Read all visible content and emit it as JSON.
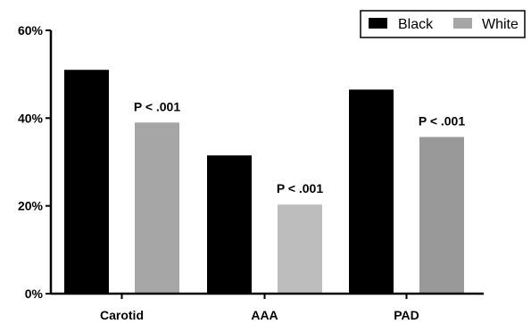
{
  "chart_data": {
    "type": "bar",
    "title": "",
    "xlabel": "",
    "ylabel": "",
    "categories": [
      "Carotid",
      "AAA",
      "PAD"
    ],
    "series": [
      {
        "name": "Black",
        "color": "#000000",
        "values": [
          51,
          31.5,
          46.5
        ]
      },
      {
        "name": "White",
        "colors": [
          "#a6a6a6",
          "#bdbdbd",
          "#999999"
        ],
        "values": [
          39,
          20.3,
          35.7
        ]
      }
    ],
    "ylim": [
      0,
      60
    ],
    "yticks": [
      0,
      20,
      40,
      60
    ],
    "ytick_labels": [
      "0%",
      "20%",
      "40%",
      "60%"
    ],
    "annotations": [
      "P < .001",
      "P < .001",
      "P < .001"
    ],
    "legend_position": "top-right",
    "grid": false
  }
}
